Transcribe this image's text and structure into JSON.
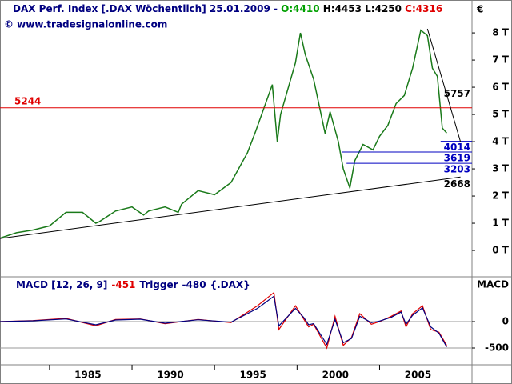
{
  "chart_data": [
    {
      "type": "line",
      "title_parts": [
        {
          "text": "DAX Perf. Index [.DAX  Wöchentlich] 25.01.2009 - ",
          "color": "#000080"
        },
        {
          "text": "O:4410",
          "color": "#00a000"
        },
        {
          "text": " H:4453",
          "color": "#000000"
        },
        {
          "text": " L:4250",
          "color": "#000000"
        },
        {
          "text": " C:4316",
          "color": "#e00000"
        }
      ],
      "watermark": "© www.tradesignalonline.com",
      "axis_label": "€",
      "color": "#1a7a1a",
      "x": [
        1982.0,
        1983,
        1984,
        1985,
        1986,
        1987,
        1987.8,
        1988,
        1989,
        1990,
        1990.7,
        1991,
        1992,
        1992.8,
        1993,
        1994,
        1995,
        1996,
        1997,
        1997.5,
        1998.5,
        1998.8,
        1999,
        1999.9,
        2000.2,
        2000.5,
        2001,
        2001.7,
        2002,
        2002.5,
        2002.8,
        2003.2,
        2003.5,
        2004,
        2004.6,
        2005,
        2005.5,
        2006,
        2006.5,
        2007,
        2007.5,
        2007.9,
        2008.2,
        2008.5,
        2008.8,
        2009.07
      ],
      "values": [
        450,
        650,
        750,
        900,
        1400,
        1400,
        1000,
        1050,
        1450,
        1600,
        1300,
        1450,
        1600,
        1400,
        1700,
        2200,
        2050,
        2500,
        3600,
        4400,
        6100,
        4000,
        5000,
        6900,
        8000,
        7200,
        6300,
        4300,
        5100,
        4000,
        3000,
        2300,
        3300,
        3900,
        3700,
        4200,
        4600,
        5400,
        5700,
        6700,
        8100,
        7900,
        6700,
        6400,
        4500,
        4316
      ],
      "xlim": [
        1982,
        2010.6
      ],
      "ylim": [
        -940,
        8620
      ],
      "yticks": [
        {
          "value": 0,
          "label": "0 T"
        },
        {
          "value": 1000,
          "label": "1 T"
        },
        {
          "value": 2000,
          "label": "2 T"
        },
        {
          "value": 3000,
          "label": "3 T"
        },
        {
          "value": 4000,
          "label": "4 T"
        },
        {
          "value": 5000,
          "label": "5 T"
        },
        {
          "value": 6000,
          "label": "6 T"
        },
        {
          "value": 7000,
          "label": "7 T"
        },
        {
          "value": 8000,
          "label": "8 T"
        }
      ],
      "levels": [
        {
          "value": 5244,
          "color": "#e00000",
          "from": 1982,
          "label_side": "left"
        },
        {
          "value": 4014,
          "color": "#0000c0",
          "from": 2008.7,
          "label_side": "right"
        },
        {
          "value": 3619,
          "color": "#0000c0",
          "from": 2002.7,
          "label_side": "right"
        },
        {
          "value": 3203,
          "color": "#0000c0",
          "from": 2003.0,
          "label_side": "right"
        }
      ],
      "trendlines": [
        {
          "x": [
            1982,
            2009.9
          ],
          "values": [
            440,
            2700
          ],
          "label": 2668,
          "color": "#000000"
        },
        {
          "x": [
            2007.9,
            2009.9
          ],
          "values": [
            8150,
            4000
          ],
          "label": 5757,
          "color": "#000000"
        }
      ]
    },
    {
      "type": "line",
      "title": "MACD [12, 26, 9]",
      "trigger_title": "Trigger",
      "symbol": "{.DAX}",
      "axis_label": "MACD",
      "x": [
        1982,
        1984,
        1986,
        1987.8,
        1989,
        1990.5,
        1992,
        1994,
        1996,
        1997.6,
        1998.6,
        1998.9,
        1999.9,
        2000.4,
        2000.7,
        2001,
        2001.8,
        2002.3,
        2002.8,
        2003.3,
        2003.8,
        2004.5,
        2005,
        2005.7,
        2006.3,
        2006.6,
        2007,
        2007.6,
        2008.1,
        2008.6,
        2009.07
      ],
      "series": [
        {
          "name": "MACD",
          "color": "#e00000",
          "values": [
            0,
            20,
            60,
            -80,
            40,
            50,
            -40,
            40,
            -20,
            300,
            550,
            -150,
            300,
            50,
            -100,
            -50,
            -500,
            100,
            -450,
            -300,
            150,
            -50,
            0,
            100,
            200,
            -100,
            150,
            300,
            -150,
            -200,
            -451
          ]
        },
        {
          "name": "Trigger",
          "color": "#000080",
          "values": [
            0,
            15,
            50,
            -60,
            30,
            45,
            -30,
            35,
            -10,
            250,
            480,
            -80,
            250,
            80,
            -60,
            -40,
            -430,
            40,
            -400,
            -320,
            100,
            -20,
            10,
            80,
            180,
            -50,
            120,
            260,
            -100,
            -220,
            -480
          ]
        }
      ],
      "xlim": [
        1982,
        2010.6
      ],
      "ylim": [
        -803,
        833
      ],
      "yticks": [
        0,
        -500
      ],
      "xticks": [
        1985,
        1990,
        1995,
        2000,
        2005
      ]
    }
  ]
}
